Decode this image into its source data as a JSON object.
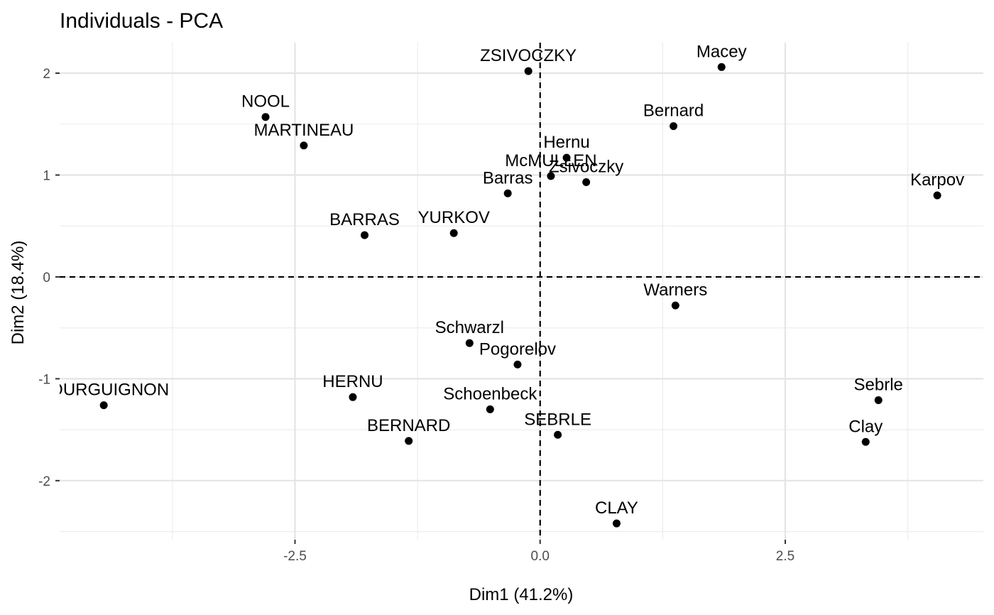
{
  "chart_data": {
    "type": "scatter",
    "title": "Individuals - PCA",
    "xlabel": "Dim1 (41.2%)",
    "ylabel": "Dim2 (18.4%)",
    "xlim": [
      -4.9,
      4.52
    ],
    "ylim": [
      -2.58,
      2.3
    ],
    "x_ticks": [
      -2.5,
      0.0,
      2.5
    ],
    "x_tick_labels": [
      "-2.5",
      "0.0",
      "2.5"
    ],
    "x_minor_ticks": [
      -3.75,
      -1.25,
      1.25,
      3.75
    ],
    "y_ticks": [
      -2,
      -1,
      0,
      1,
      2
    ],
    "y_tick_labels": [
      "-2",
      "-1",
      "0",
      "1",
      "2"
    ],
    "y_minor_ticks": [
      -2.5,
      -1.5,
      -0.5,
      0.5,
      1.5
    ],
    "grid": true,
    "reference_lines": {
      "x": 0,
      "y": 0,
      "style": "dashed"
    },
    "points": [
      {
        "label": "ZSIVOCZKY",
        "x": -0.12,
        "y": 2.02
      },
      {
        "label": "Macey",
        "x": 1.85,
        "y": 2.06
      },
      {
        "label": "NOOL",
        "x": -2.8,
        "y": 1.57
      },
      {
        "label": "MARTINEAU",
        "x": -2.41,
        "y": 1.29
      },
      {
        "label": "Bernard",
        "x": 1.36,
        "y": 1.48
      },
      {
        "label": "Hernu",
        "x": 0.27,
        "y": 1.17
      },
      {
        "label": "McMULLEN",
        "x": 0.11,
        "y": 0.99
      },
      {
        "label": "Zsivoczky",
        "x": 0.47,
        "y": 0.93
      },
      {
        "label": "Barras",
        "x": -0.33,
        "y": 0.82
      },
      {
        "label": "Karpov",
        "x": 4.05,
        "y": 0.8
      },
      {
        "label": "BARRAS",
        "x": -1.79,
        "y": 0.41
      },
      {
        "label": "YURKOV",
        "x": -0.88,
        "y": 0.43
      },
      {
        "label": "Warners",
        "x": 1.38,
        "y": -0.28
      },
      {
        "label": "Schwarzl",
        "x": -0.72,
        "y": -0.65
      },
      {
        "label": "Pogorelov",
        "x": -0.23,
        "y": -0.86
      },
      {
        "label": "BOURGUIGNON",
        "x": -4.45,
        "y": -1.26
      },
      {
        "label": "HERNU",
        "x": -1.91,
        "y": -1.18
      },
      {
        "label": "Sebrle",
        "x": 3.45,
        "y": -1.21
      },
      {
        "label": "Schoenbeck",
        "x": -0.51,
        "y": -1.3
      },
      {
        "label": "BERNARD",
        "x": -1.34,
        "y": -1.61
      },
      {
        "label": "SEBRLE",
        "x": 0.18,
        "y": -1.55
      },
      {
        "label": "Clay",
        "x": 3.32,
        "y": -1.62
      },
      {
        "label": "CLAY",
        "x": 0.78,
        "y": -2.42
      }
    ]
  }
}
